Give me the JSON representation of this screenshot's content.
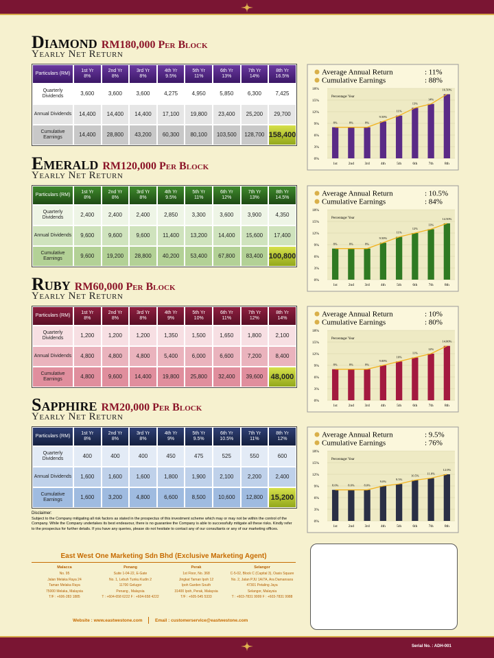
{
  "plans": [
    {
      "name": "Diamond",
      "price": "RM180,000",
      "per": "Per Block",
      "subtitle": "Yearly Net Return",
      "table": {
        "header": [
          "Particulars (RM)"
        ],
        "years": [
          "1st Yr",
          "2nd Yr",
          "3rd Yr",
          "4th Yr",
          "5th Yr",
          "6th Yr",
          "7th Yr",
          "8th Yr"
        ],
        "rates": [
          "8%",
          "8%",
          "8%",
          "9.5%",
          "11%",
          "13%",
          "14%",
          "16.5%"
        ],
        "rows": [
          [
            "Quarterly Dividends",
            "3,600",
            "3,600",
            "3,600",
            "4,275",
            "4,950",
            "5,850",
            "6,300",
            "7,425"
          ],
          [
            "Annual Dividends",
            "14,400",
            "14,400",
            "14,400",
            "17,100",
            "19,800",
            "23,400",
            "25,200",
            "29,700"
          ],
          [
            "Cumulative Earnings",
            "14,400",
            "28,800",
            "43,200",
            "60,300",
            "80,100",
            "103,500",
            "128,700",
            "158,400"
          ]
        ]
      }
    },
    {
      "name": "Emerald",
      "price": "RM120,000",
      "per": "Per Block",
      "subtitle": "Yearly Net Return",
      "table": {
        "header": [
          "Particulars (RM)"
        ],
        "years": [
          "1st Yr",
          "2nd Yr",
          "3rd Yr",
          "4th Yr",
          "5th Yr",
          "6th Yr",
          "7th Yr",
          "8th Yr"
        ],
        "rates": [
          "8%",
          "8%",
          "8%",
          "9.5%",
          "11%",
          "12%",
          "13%",
          "14.5%"
        ],
        "rows": [
          [
            "Quarterly Dividends",
            "2,400",
            "2,400",
            "2,400",
            "2,850",
            "3,300",
            "3,600",
            "3,900",
            "4,350"
          ],
          [
            "Annual Dividends",
            "9,600",
            "9,600",
            "9,600",
            "11,400",
            "13,200",
            "14,400",
            "15,600",
            "17,400"
          ],
          [
            "Cumulative Earnings",
            "9,600",
            "19,200",
            "28,800",
            "40,200",
            "53,400",
            "67,800",
            "83,400",
            "100,800"
          ]
        ]
      }
    },
    {
      "name": "Ruby",
      "price": "RM60,000",
      "per": "Per Block",
      "subtitle": "Yearly Net Return",
      "table": {
        "header": [
          "Particulars (RM)"
        ],
        "years": [
          "1st Yr",
          "2nd Yr",
          "3rd Yr",
          "4th Yr",
          "5th Yr",
          "6th Yr",
          "7th Yr",
          "8th Yr"
        ],
        "rates": [
          "8%",
          "8%",
          "8%",
          "9%",
          "10%",
          "11%",
          "12%",
          "14%"
        ],
        "rows": [
          [
            "Quarterly Dividends",
            "1,200",
            "1,200",
            "1,200",
            "1,350",
            "1,500",
            "1,650",
            "1,800",
            "2,100"
          ],
          [
            "Annual Dividends",
            "4,800",
            "4,800",
            "4,800",
            "5,400",
            "6,000",
            "6,600",
            "7,200",
            "8,400"
          ],
          [
            "Cumulative Earnings",
            "4,800",
            "9,600",
            "14,400",
            "19,800",
            "25,800",
            "32,400",
            "39,600",
            "48,000"
          ]
        ]
      }
    },
    {
      "name": "Sapphire",
      "price": "RM20,000",
      "per": "Per Block",
      "subtitle": "Yearly Net Return",
      "table": {
        "header": [
          "Particulars (RM)"
        ],
        "years": [
          "1st Yr",
          "2nd Yr",
          "3rd Yr",
          "4th Yr",
          "5th Yr",
          "6th Yr",
          "7th Yr",
          "8th Yr"
        ],
        "rates": [
          "8%",
          "8%",
          "8%",
          "9%",
          "9.5%",
          "10.5%",
          "11%",
          "12%"
        ],
        "rows": [
          [
            "Quarterly Dividends",
            "400",
            "400",
            "400",
            "450",
            "475",
            "525",
            "550",
            "600"
          ],
          [
            "Annual Dividends",
            "1,600",
            "1,600",
            "1,600",
            "1,800",
            "1,900",
            "2,100",
            "2,200",
            "2,400"
          ],
          [
            "Cumulative Earnings",
            "1,600",
            "3,200",
            "4,800",
            "6,600",
            "8,500",
            "10,600",
            "12,800",
            "15,200"
          ]
        ]
      }
    }
  ],
  "chart_data": [
    {
      "type": "bar",
      "summary": [
        [
          "Average Annual Return",
          ": 11%"
        ],
        [
          "Cumulative Earnings",
          ": 88%"
        ]
      ],
      "y_label": "Percentage/ Year",
      "color": "#5a2a86",
      "categories": [
        "1st",
        "2nd",
        "3rd",
        "4th",
        "5th",
        "6th",
        "7th",
        "8th"
      ],
      "values": [
        8,
        8,
        8,
        9.5,
        11,
        13,
        14,
        16.5
      ],
      "value_labels": [
        "8%",
        "8%",
        "8%",
        "9.50%",
        "11%",
        "13%",
        "14%",
        "16.50%"
      ],
      "ylim": [
        0,
        18
      ],
      "yticks": [
        {
          "value": 0,
          "label": "0%"
        },
        {
          "value": 3,
          "label": "3%"
        },
        {
          "value": 6,
          "label": "6%"
        },
        {
          "value": 9,
          "label": "9%"
        },
        {
          "value": 12,
          "label": "12%"
        },
        {
          "value": 15,
          "label": "15%"
        },
        {
          "value": 18,
          "label": "18%"
        }
      ]
    },
    {
      "type": "bar",
      "summary": [
        [
          "Average Annual Return",
          ": 10.5%"
        ],
        [
          "Cumulative Earnings",
          ": 84%"
        ]
      ],
      "y_label": "Percentage/ Year",
      "color": "#2f7a22",
      "categories": [
        "1st",
        "2nd",
        "3rd",
        "4th",
        "5th",
        "6th",
        "7th",
        "8th"
      ],
      "values": [
        8,
        8,
        8,
        9.5,
        11,
        12,
        13,
        14.5
      ],
      "value_labels": [
        "8%",
        "8%",
        "8%",
        "9.50%",
        "11%",
        "12%",
        "13%",
        "14.50%"
      ],
      "ylim": [
        0,
        18
      ],
      "yticks": [
        {
          "value": 0,
          "label": "0%"
        },
        {
          "value": 3,
          "label": "3%"
        },
        {
          "value": 6,
          "label": "6%"
        },
        {
          "value": 9,
          "label": "9%"
        },
        {
          "value": 12,
          "label": "12%"
        },
        {
          "value": 15,
          "label": "15%"
        },
        {
          "value": 18,
          "label": "18%"
        }
      ]
    },
    {
      "type": "bar",
      "summary": [
        [
          "Average Annual Return",
          ": 10%"
        ],
        [
          "Cumulative Earnings",
          ": 80%"
        ]
      ],
      "y_label": "Percentage/ Year",
      "color": "#a3193f",
      "categories": [
        "1st",
        "2nd",
        "3rd",
        "4th",
        "5th",
        "6th",
        "7th",
        "8th"
      ],
      "values": [
        8,
        8,
        8,
        9,
        10,
        11,
        12,
        14
      ],
      "value_labels": [
        "8%",
        "8%",
        "8%",
        "9.00%",
        "10%",
        "11%",
        "12%",
        "14.00%"
      ],
      "ylim": [
        0,
        18
      ],
      "yticks": [
        {
          "value": 0,
          "label": "0%"
        },
        {
          "value": 3,
          "label": "3%"
        },
        {
          "value": 6,
          "label": "6%"
        },
        {
          "value": 9,
          "label": "9%"
        },
        {
          "value": 12,
          "label": "12%"
        },
        {
          "value": 15,
          "label": "15%"
        },
        {
          "value": 18,
          "label": "18%"
        }
      ]
    },
    {
      "type": "bar",
      "summary": [
        [
          "Average Annual Return",
          ": 9.5%"
        ],
        [
          "Cumulative Earnings",
          ": 76%"
        ]
      ],
      "y_label": "Percentage/ Year",
      "color": "#2a2f45",
      "categories": [
        "1st",
        "2nd",
        "3rd",
        "4th",
        "5th",
        "6th",
        "7th",
        "8th"
      ],
      "values": [
        8,
        8,
        8,
        9,
        9.5,
        10.5,
        11,
        12
      ],
      "value_labels": [
        "8.0%",
        "8.0%",
        "8.0%",
        "9.0%",
        "9.5%",
        "10.5%",
        "11.0%",
        "12.0%"
      ],
      "ylim": [
        0,
        18
      ],
      "yticks": [
        {
          "value": 0,
          "label": "0%"
        },
        {
          "value": 3,
          "label": "3%"
        },
        {
          "value": 6,
          "label": "6%"
        },
        {
          "value": 9,
          "label": "9%"
        },
        {
          "value": 12,
          "label": "12%"
        },
        {
          "value": 15,
          "label": "15%"
        },
        {
          "value": 18,
          "label": "18%"
        }
      ]
    }
  ],
  "disclaimer": {
    "title": "Disclaimer:",
    "text": "Subject to the Company mitigating all risk factors as stated in the prospectus of this investment scheme which may or may not be within the control of the Company. While the Company undertakes its best endeavour, there is no guarantee the Company is able to successfully mitigate all these risks. Kindly refer to the prospectus for further details. If you have any queries, please do not hesitate to contact any of our consultants or any of our marketing offices."
  },
  "footer": {
    "agency": "East West One Marketing Sdn Bhd (Exclusive Marketing Agent)",
    "offices": [
      {
        "city": "Malacca",
        "lines": [
          "No. 95",
          "Jalan Melaka Raya 24",
          "Taman Melaka Raya",
          "75000 Melaka, Malaysia",
          "T/F : +606-283 1885"
        ]
      },
      {
        "city": "Penang",
        "lines": [
          "Suite 1-04-22, E-Gate",
          "No. 1, Lebuh Tunku Kudin 2",
          "11700 Gelugor",
          "Penang , Malaysia",
          "T : +604-658 6222  F : +604-658 4222"
        ]
      },
      {
        "city": "Perak",
        "lines": [
          "1st Floor, No. 368",
          "Jingkat Taman Ipoh 12",
          "Ipoh Garden South",
          "31400 Ipoh, Perak, Malaysia",
          "T/F : +605-545 5333"
        ]
      },
      {
        "city": "Selangor",
        "lines": [
          "C-5-02, Block C (Capital 3), Oasis Square",
          "No. 2, Jalan PJU 1A/7A, Ara Damansara",
          "47301 Petaling Jaya",
          "Selangor, Malaysia",
          "T : +603-7831 9999  F : +603-7831 9988"
        ]
      }
    ],
    "website": "Website : www.eastwestone.com",
    "email": "Email : customerservice@eastwestone.com"
  },
  "serial": "Serial No. : ADH-001"
}
